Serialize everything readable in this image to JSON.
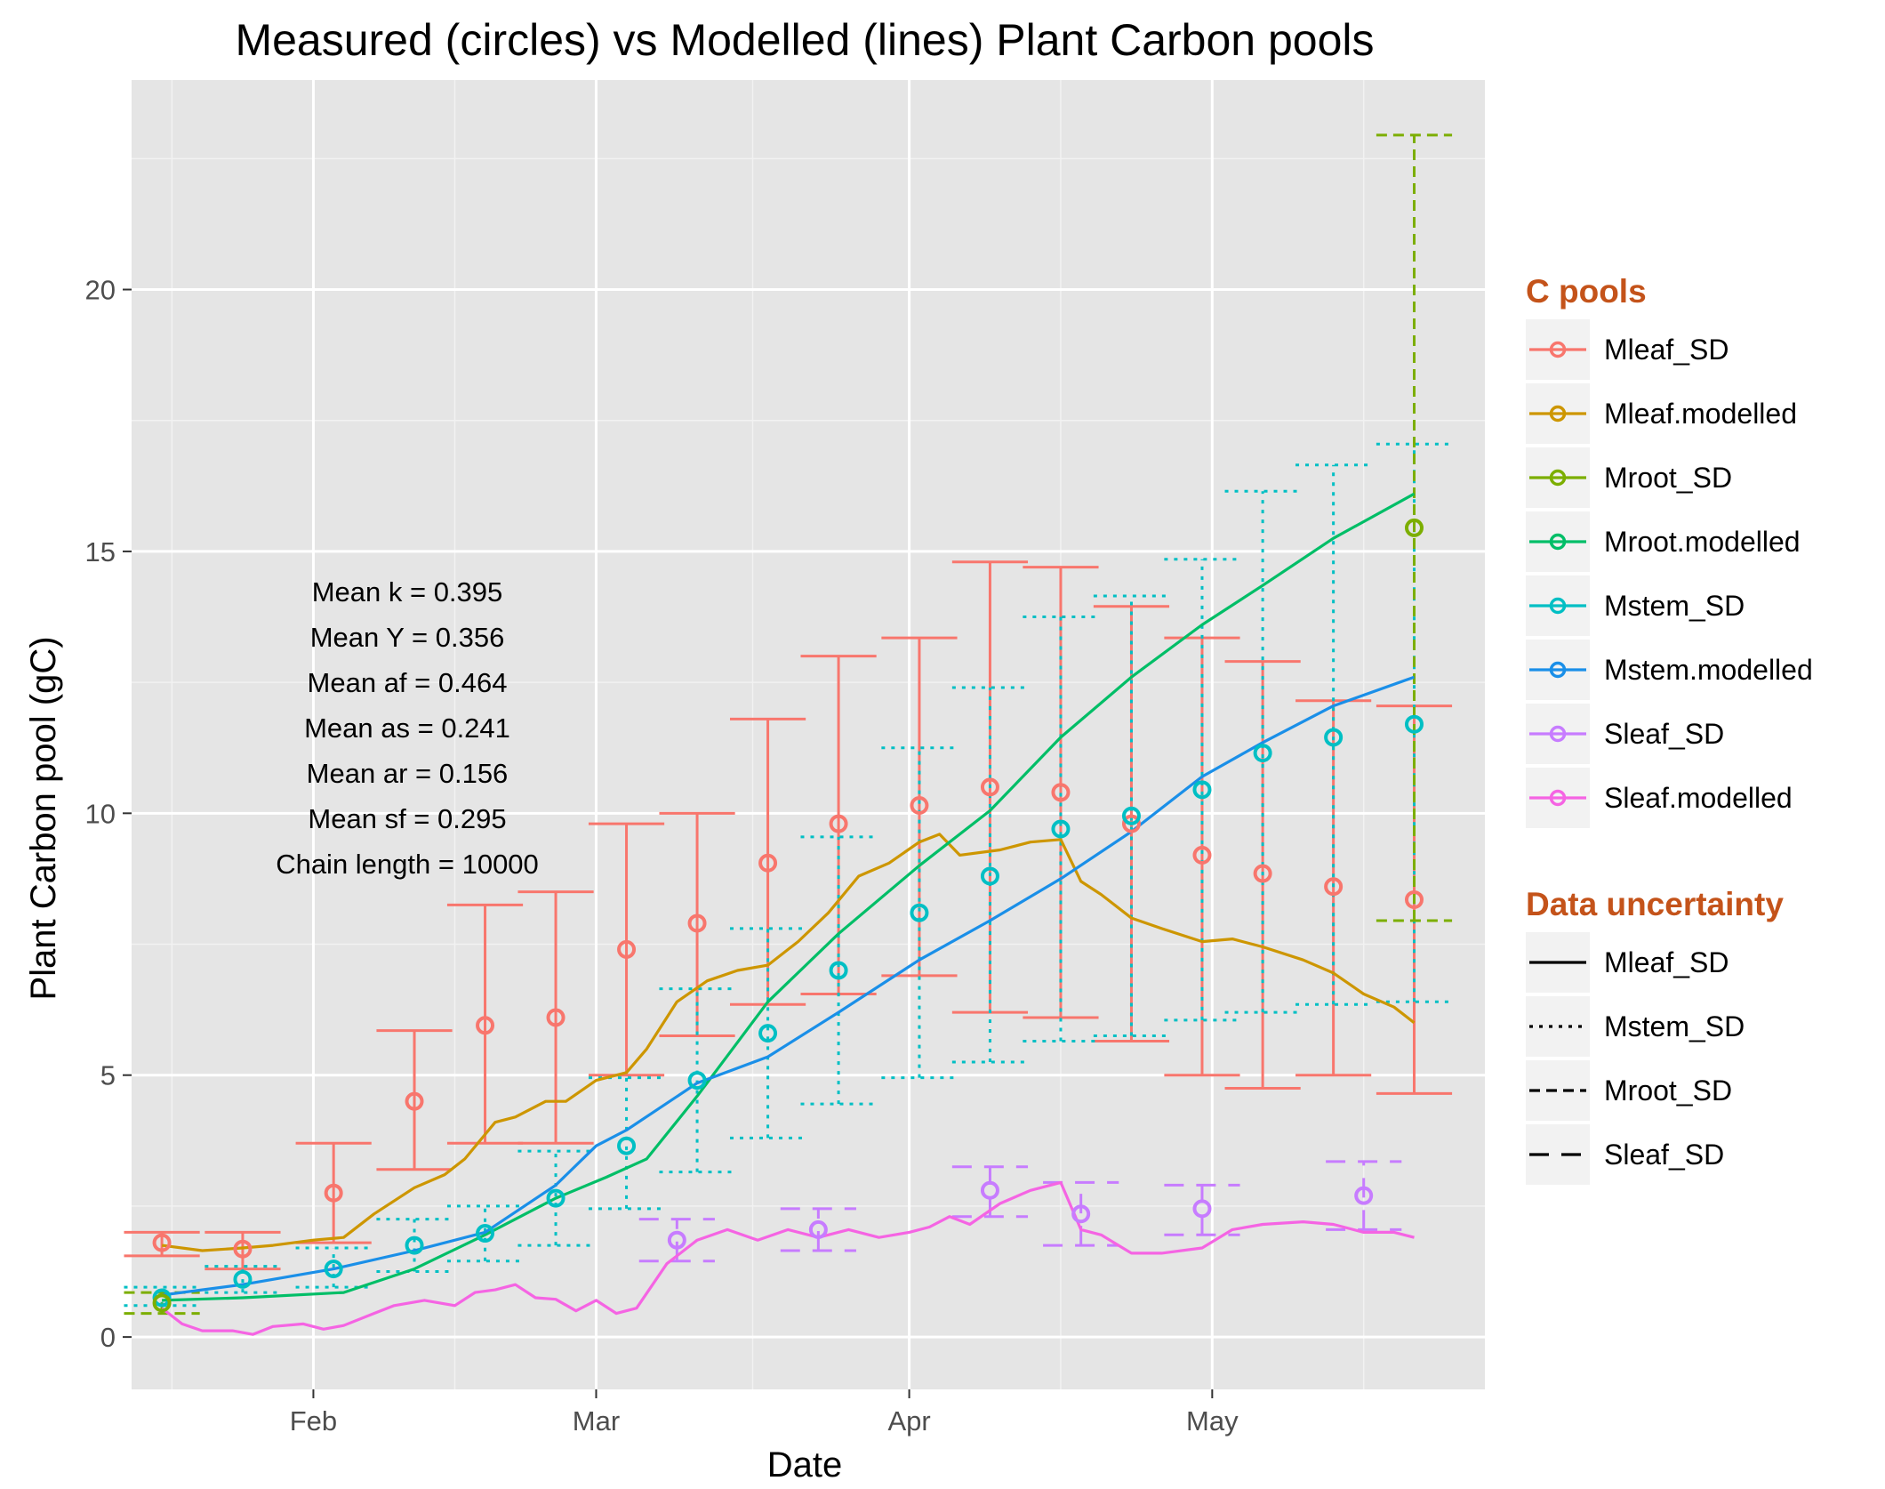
{
  "chart_data": {
    "type": "line",
    "title": "Measured (circles) vs Modelled (lines) Plant Carbon pools",
    "xlabel": "Date",
    "ylabel": "Plant Carbon pool (gC)",
    "x_range": [
      "2019-01-14",
      "2019-05-28"
    ],
    "ylim": [
      -1,
      24
    ],
    "x_ticks": [
      {
        "date": "2019-02-01",
        "label": "Feb"
      },
      {
        "date": "2019-03-01",
        "label": "Mar"
      },
      {
        "date": "2019-04-01",
        "label": "Apr"
      },
      {
        "date": "2019-05-01",
        "label": "May"
      }
    ],
    "y_ticks": [
      0,
      5,
      10,
      15,
      20
    ],
    "grid": true,
    "panel_color": "#e5e5e5",
    "legend_placement": "right",
    "legends": [
      {
        "title": "C pools",
        "items": [
          {
            "label": "Mleaf_SD",
            "color": "#f8766d"
          },
          {
            "label": "Mleaf.modelled",
            "color": "#cd9600"
          },
          {
            "label": "Mroot_SD",
            "color": "#7cae00"
          },
          {
            "label": "Mroot.modelled",
            "color": "#00be67"
          },
          {
            "label": "Mstem_SD",
            "color": "#00bfc4"
          },
          {
            "label": "Mstem.modelled",
            "color": "#1a8fe8"
          },
          {
            "label": "Sleaf_SD",
            "color": "#c77cff"
          },
          {
            "label": "Sleaf.modelled",
            "color": "#f564e3"
          }
        ]
      },
      {
        "title": "Data uncertainty",
        "items": [
          {
            "label": "Mleaf_SD",
            "linetype": "solid"
          },
          {
            "label": "Mstem_SD",
            "linetype": "dotted"
          },
          {
            "label": "Mroot_SD",
            "linetype": "dashed"
          },
          {
            "label": "Sleaf_SD",
            "linetype": "longdash"
          }
        ]
      }
    ],
    "annotations": [
      "Mean k =  0.395",
      "Mean Y =  0.356",
      "Mean af =  0.464",
      "Mean as =  0.241",
      "Mean ar =  0.156",
      "Mean sf =  0.295",
      "Chain length =  10000"
    ],
    "measured": [
      {
        "name": "Mleaf_SD",
        "color": "#f8766d",
        "linetype": "solid",
        "points": [
          {
            "x": "2019-01-17",
            "y": 1.8,
            "lo": 1.55,
            "hi": 2.0
          },
          {
            "x": "2019-01-25",
            "y": 1.68,
            "lo": 1.3,
            "hi": 2.0
          },
          {
            "x": "2019-02-03",
            "y": 2.75,
            "lo": 1.8,
            "hi": 3.7
          },
          {
            "x": "2019-02-11",
            "y": 4.5,
            "lo": 3.2,
            "hi": 5.85
          },
          {
            "x": "2019-02-18",
            "y": 5.95,
            "lo": 3.7,
            "hi": 8.25
          },
          {
            "x": "2019-02-25",
            "y": 6.1,
            "lo": 3.7,
            "hi": 8.5
          },
          {
            "x": "2019-03-04",
            "y": 7.4,
            "lo": 5.0,
            "hi": 9.8
          },
          {
            "x": "2019-03-11",
            "y": 7.9,
            "lo": 5.75,
            "hi": 10.0
          },
          {
            "x": "2019-03-18",
            "y": 9.05,
            "lo": 6.35,
            "hi": 11.8
          },
          {
            "x": "2019-03-25",
            "y": 9.8,
            "lo": 6.55,
            "hi": 13.0
          },
          {
            "x": "2019-04-02",
            "y": 10.15,
            "lo": 6.9,
            "hi": 13.35
          },
          {
            "x": "2019-04-09",
            "y": 10.5,
            "lo": 6.2,
            "hi": 14.8
          },
          {
            "x": "2019-04-16",
            "y": 10.4,
            "lo": 6.1,
            "hi": 14.7
          },
          {
            "x": "2019-04-23",
            "y": 9.8,
            "lo": 5.65,
            "hi": 13.95
          },
          {
            "x": "2019-04-30",
            "y": 9.2,
            "lo": 5.0,
            "hi": 13.35
          },
          {
            "x": "2019-05-06",
            "y": 8.85,
            "lo": 4.75,
            "hi": 12.9
          },
          {
            "x": "2019-05-13",
            "y": 8.6,
            "lo": 5.0,
            "hi": 12.15
          },
          {
            "x": "2019-05-21",
            "y": 8.35,
            "lo": 4.65,
            "hi": 12.05
          }
        ]
      },
      {
        "name": "Mstem_SD",
        "color": "#00bfc4",
        "linetype": "dotted",
        "points": [
          {
            "x": "2019-01-17",
            "y": 0.75,
            "lo": 0.6,
            "hi": 0.95
          },
          {
            "x": "2019-01-25",
            "y": 1.1,
            "lo": 0.85,
            "hi": 1.35
          },
          {
            "x": "2019-02-03",
            "y": 1.3,
            "lo": 0.95,
            "hi": 1.7
          },
          {
            "x": "2019-02-11",
            "y": 1.75,
            "lo": 1.25,
            "hi": 2.25
          },
          {
            "x": "2019-02-18",
            "y": 1.98,
            "lo": 1.45,
            "hi": 2.5
          },
          {
            "x": "2019-02-25",
            "y": 2.65,
            "lo": 1.75,
            "hi": 3.55
          },
          {
            "x": "2019-03-04",
            "y": 3.65,
            "lo": 2.45,
            "hi": 4.95
          },
          {
            "x": "2019-03-11",
            "y": 4.9,
            "lo": 3.15,
            "hi": 6.65
          },
          {
            "x": "2019-03-18",
            "y": 5.8,
            "lo": 3.8,
            "hi": 7.8
          },
          {
            "x": "2019-03-25",
            "y": 7.0,
            "lo": 4.45,
            "hi": 9.55
          },
          {
            "x": "2019-04-02",
            "y": 8.1,
            "lo": 4.95,
            "hi": 11.25
          },
          {
            "x": "2019-04-09",
            "y": 8.8,
            "lo": 5.25,
            "hi": 12.4
          },
          {
            "x": "2019-04-16",
            "y": 9.7,
            "lo": 5.65,
            "hi": 13.75
          },
          {
            "x": "2019-04-23",
            "y": 9.95,
            "lo": 5.75,
            "hi": 14.15
          },
          {
            "x": "2019-04-30",
            "y": 10.45,
            "lo": 6.05,
            "hi": 14.85
          },
          {
            "x": "2019-05-06",
            "y": 11.15,
            "lo": 6.2,
            "hi": 16.15
          },
          {
            "x": "2019-05-13",
            "y": 11.45,
            "lo": 6.35,
            "hi": 16.65
          },
          {
            "x": "2019-05-21",
            "y": 11.7,
            "lo": 6.4,
            "hi": 17.05
          }
        ]
      },
      {
        "name": "Mroot_SD",
        "color": "#7cae00",
        "linetype": "dashed",
        "points": [
          {
            "x": "2019-01-17",
            "y": 0.65,
            "lo": 0.45,
            "hi": 0.85
          },
          {
            "x": "2019-05-21",
            "y": 15.45,
            "lo": 7.95,
            "hi": 22.95
          }
        ]
      },
      {
        "name": "Sleaf_SD",
        "color": "#c77cff",
        "linetype": "longdash",
        "points": [
          {
            "x": "2019-03-09",
            "y": 1.85,
            "lo": 1.45,
            "hi": 2.25
          },
          {
            "x": "2019-03-23",
            "y": 2.05,
            "lo": 1.65,
            "hi": 2.45
          },
          {
            "x": "2019-04-09",
            "y": 2.8,
            "lo": 2.3,
            "hi": 3.25
          },
          {
            "x": "2019-04-18",
            "y": 2.35,
            "lo": 1.75,
            "hi": 2.95
          },
          {
            "x": "2019-04-30",
            "y": 2.45,
            "lo": 1.95,
            "hi": 2.9
          },
          {
            "x": "2019-05-16",
            "y": 2.7,
            "lo": 2.05,
            "hi": 3.35
          }
        ]
      }
    ],
    "modelled": [
      {
        "name": "Mleaf.modelled",
        "color": "#cd9600",
        "points": [
          [
            "2019-01-17",
            1.75
          ],
          [
            "2019-01-21",
            1.65
          ],
          [
            "2019-01-25",
            1.7
          ],
          [
            "2019-01-28",
            1.75
          ],
          [
            "2019-02-01",
            1.85
          ],
          [
            "2019-02-04",
            1.9
          ],
          [
            "2019-02-07",
            2.35
          ],
          [
            "2019-02-11",
            2.85
          ],
          [
            "2019-02-14",
            3.1
          ],
          [
            "2019-02-16",
            3.4
          ],
          [
            "2019-02-19",
            4.1
          ],
          [
            "2019-02-21",
            4.2
          ],
          [
            "2019-02-24",
            4.5
          ],
          [
            "2019-02-26",
            4.5
          ],
          [
            "2019-03-01",
            4.9
          ],
          [
            "2019-03-04",
            5.05
          ],
          [
            "2019-03-06",
            5.5
          ],
          [
            "2019-03-09",
            6.4
          ],
          [
            "2019-03-12",
            6.8
          ],
          [
            "2019-03-15",
            7.0
          ],
          [
            "2019-03-18",
            7.1
          ],
          [
            "2019-03-21",
            7.55
          ],
          [
            "2019-03-24",
            8.1
          ],
          [
            "2019-03-27",
            8.8
          ],
          [
            "2019-03-30",
            9.05
          ],
          [
            "2019-04-02",
            9.45
          ],
          [
            "2019-04-04",
            9.6
          ],
          [
            "2019-04-06",
            9.2
          ],
          [
            "2019-04-10",
            9.3
          ],
          [
            "2019-04-13",
            9.45
          ],
          [
            "2019-04-16",
            9.5
          ],
          [
            "2019-04-18",
            8.7
          ],
          [
            "2019-04-20",
            8.45
          ],
          [
            "2019-04-23",
            8.0
          ],
          [
            "2019-04-26",
            7.8
          ],
          [
            "2019-04-30",
            7.55
          ],
          [
            "2019-05-03",
            7.6
          ],
          [
            "2019-05-06",
            7.45
          ],
          [
            "2019-05-10",
            7.2
          ],
          [
            "2019-05-13",
            6.95
          ],
          [
            "2019-05-16",
            6.55
          ],
          [
            "2019-05-19",
            6.3
          ],
          [
            "2019-05-21",
            6.0
          ]
        ]
      },
      {
        "name": "Mroot.modelled",
        "color": "#00be67",
        "points": [
          [
            "2019-01-17",
            0.7
          ],
          [
            "2019-01-25",
            0.75
          ],
          [
            "2019-02-04",
            0.85
          ],
          [
            "2019-02-11",
            1.3
          ],
          [
            "2019-02-18",
            1.95
          ],
          [
            "2019-02-25",
            2.65
          ],
          [
            "2019-03-02",
            3.05
          ],
          [
            "2019-03-06",
            3.4
          ],
          [
            "2019-03-11",
            4.6
          ],
          [
            "2019-03-18",
            6.4
          ],
          [
            "2019-03-25",
            7.7
          ],
          [
            "2019-04-02",
            9.0
          ],
          [
            "2019-04-09",
            10.05
          ],
          [
            "2019-04-16",
            11.45
          ],
          [
            "2019-04-23",
            12.6
          ],
          [
            "2019-04-30",
            13.6
          ],
          [
            "2019-05-06",
            14.35
          ],
          [
            "2019-05-13",
            15.25
          ],
          [
            "2019-05-21",
            16.1
          ]
        ]
      },
      {
        "name": "Mstem.modelled",
        "color": "#1a8fe8",
        "points": [
          [
            "2019-01-17",
            0.8
          ],
          [
            "2019-01-25",
            1.0
          ],
          [
            "2019-02-03",
            1.3
          ],
          [
            "2019-02-11",
            1.65
          ],
          [
            "2019-02-18",
            2.0
          ],
          [
            "2019-02-25",
            2.9
          ],
          [
            "2019-03-01",
            3.65
          ],
          [
            "2019-03-04",
            3.95
          ],
          [
            "2019-03-11",
            4.85
          ],
          [
            "2019-03-18",
            5.35
          ],
          [
            "2019-03-25",
            6.2
          ],
          [
            "2019-04-02",
            7.2
          ],
          [
            "2019-04-09",
            7.95
          ],
          [
            "2019-04-16",
            8.75
          ],
          [
            "2019-04-23",
            9.65
          ],
          [
            "2019-04-30",
            10.7
          ],
          [
            "2019-05-06",
            11.35
          ],
          [
            "2019-05-13",
            12.05
          ],
          [
            "2019-05-21",
            12.6
          ]
        ]
      },
      {
        "name": "Sleaf.modelled",
        "color": "#f564e3",
        "points": [
          [
            "2019-01-17",
            0.55
          ],
          [
            "2019-01-19",
            0.25
          ],
          [
            "2019-01-21",
            0.12
          ],
          [
            "2019-01-24",
            0.12
          ],
          [
            "2019-01-26",
            0.05
          ],
          [
            "2019-01-28",
            0.2
          ],
          [
            "2019-01-31",
            0.25
          ],
          [
            "2019-02-02",
            0.15
          ],
          [
            "2019-02-04",
            0.22
          ],
          [
            "2019-02-07",
            0.45
          ],
          [
            "2019-02-09",
            0.6
          ],
          [
            "2019-02-12",
            0.7
          ],
          [
            "2019-02-15",
            0.6
          ],
          [
            "2019-02-17",
            0.85
          ],
          [
            "2019-02-19",
            0.9
          ],
          [
            "2019-02-21",
            1.0
          ],
          [
            "2019-02-23",
            0.75
          ],
          [
            "2019-02-25",
            0.72
          ],
          [
            "2019-02-27",
            0.5
          ],
          [
            "2019-03-01",
            0.7
          ],
          [
            "2019-03-03",
            0.45
          ],
          [
            "2019-03-05",
            0.55
          ],
          [
            "2019-03-08",
            1.4
          ],
          [
            "2019-03-11",
            1.85
          ],
          [
            "2019-03-14",
            2.05
          ],
          [
            "2019-03-17",
            1.85
          ],
          [
            "2019-03-20",
            2.05
          ],
          [
            "2019-03-23",
            1.9
          ],
          [
            "2019-03-26",
            2.05
          ],
          [
            "2019-03-29",
            1.9
          ],
          [
            "2019-04-01",
            2.0
          ],
          [
            "2019-04-03",
            2.1
          ],
          [
            "2019-04-05",
            2.3
          ],
          [
            "2019-04-07",
            2.15
          ],
          [
            "2019-04-10",
            2.55
          ],
          [
            "2019-04-13",
            2.8
          ],
          [
            "2019-04-16",
            2.95
          ],
          [
            "2019-04-18",
            2.05
          ],
          [
            "2019-04-20",
            1.95
          ],
          [
            "2019-04-23",
            1.6
          ],
          [
            "2019-04-26",
            1.6
          ],
          [
            "2019-04-30",
            1.7
          ],
          [
            "2019-05-03",
            2.05
          ],
          [
            "2019-05-06",
            2.15
          ],
          [
            "2019-05-10",
            2.2
          ],
          [
            "2019-05-13",
            2.15
          ],
          [
            "2019-05-16",
            2.0
          ],
          [
            "2019-05-19",
            2.0
          ],
          [
            "2019-05-21",
            1.9
          ]
        ]
      }
    ]
  }
}
